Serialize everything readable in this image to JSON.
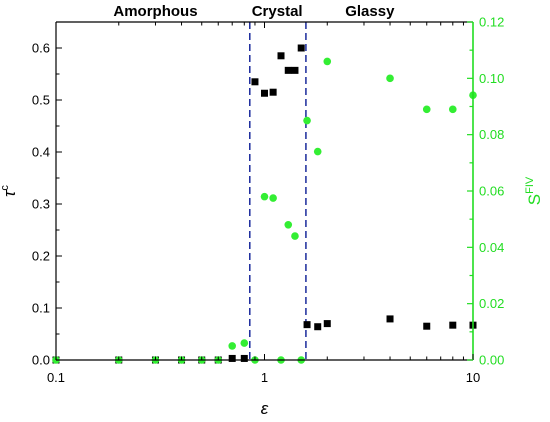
{
  "chart_data": {
    "type": "scatter",
    "x_scale": "log",
    "xlim": [
      0.1,
      10
    ],
    "ylim_left": [
      0,
      0.65
    ],
    "ylim_right": [
      0,
      0.12
    ],
    "xlabel": "ε",
    "ylabel_left": "τ",
    "ylabel_left_sup": "c",
    "ylabel_right": "S",
    "ylabel_right_sup": "FIV",
    "x_ticks": [
      {
        "value": 0.1,
        "label": "0.1"
      },
      {
        "value": 1,
        "label": "1"
      },
      {
        "value": 10,
        "label": "10"
      }
    ],
    "y_left_ticks": [
      {
        "value": 0.0,
        "label": "0.0"
      },
      {
        "value": 0.1,
        "label": "0.1"
      },
      {
        "value": 0.2,
        "label": "0.2"
      },
      {
        "value": 0.3,
        "label": "0.3"
      },
      {
        "value": 0.4,
        "label": "0.4"
      },
      {
        "value": 0.5,
        "label": "0.5"
      },
      {
        "value": 0.6,
        "label": "0.6"
      }
    ],
    "y_right_ticks": [
      {
        "value": 0.0,
        "label": "0.00"
      },
      {
        "value": 0.02,
        "label": "0.02"
      },
      {
        "value": 0.04,
        "label": "0.04"
      },
      {
        "value": 0.06,
        "label": "0.06"
      },
      {
        "value": 0.08,
        "label": "0.08"
      },
      {
        "value": 0.1,
        "label": "0.10"
      },
      {
        "value": 0.12,
        "label": "0.12"
      }
    ],
    "regions": [
      {
        "label": "Amorphous",
        "x": 0.3
      },
      {
        "label": "Crystal",
        "x": 1.15
      },
      {
        "label": "Glassy",
        "x": 3.2
      }
    ],
    "boundaries": [
      0.85,
      1.58
    ],
    "series": [
      {
        "axis": "left",
        "marker": "square",
        "color": "#000000",
        "x": [
          0.1,
          0.2,
          0.3,
          0.4,
          0.5,
          0.6,
          0.7,
          0.8,
          0.9,
          1.0,
          1.1,
          1.2,
          1.3,
          1.4,
          1.5,
          1.6,
          1.8,
          2.0,
          4.0,
          6.0,
          8.0,
          10.0
        ],
        "y": [
          0.0,
          0.0,
          0.0,
          0.0,
          0.0,
          0.0,
          0.003,
          0.003,
          0.535,
          0.513,
          0.515,
          0.585,
          0.557,
          0.557,
          0.6,
          0.068,
          0.064,
          0.07,
          0.079,
          0.065,
          0.067,
          0.067
        ]
      },
      {
        "axis": "right",
        "marker": "circle",
        "color": "#33ee33",
        "x": [
          0.1,
          0.2,
          0.3,
          0.4,
          0.5,
          0.6,
          0.7,
          0.8,
          0.9,
          1.0,
          1.1,
          1.2,
          1.3,
          1.4,
          1.5,
          1.6,
          1.8,
          2.0,
          4.0,
          6.0,
          8.0,
          10.0
        ],
        "y": [
          0.0,
          0.0,
          0.0,
          0.0,
          0.0,
          0.0,
          0.005,
          0.006,
          0.0,
          0.058,
          0.0575,
          0.0,
          0.048,
          0.044,
          0.0,
          0.085,
          0.074,
          0.106,
          0.1,
          0.089,
          0.089,
          0.094
        ]
      }
    ]
  }
}
